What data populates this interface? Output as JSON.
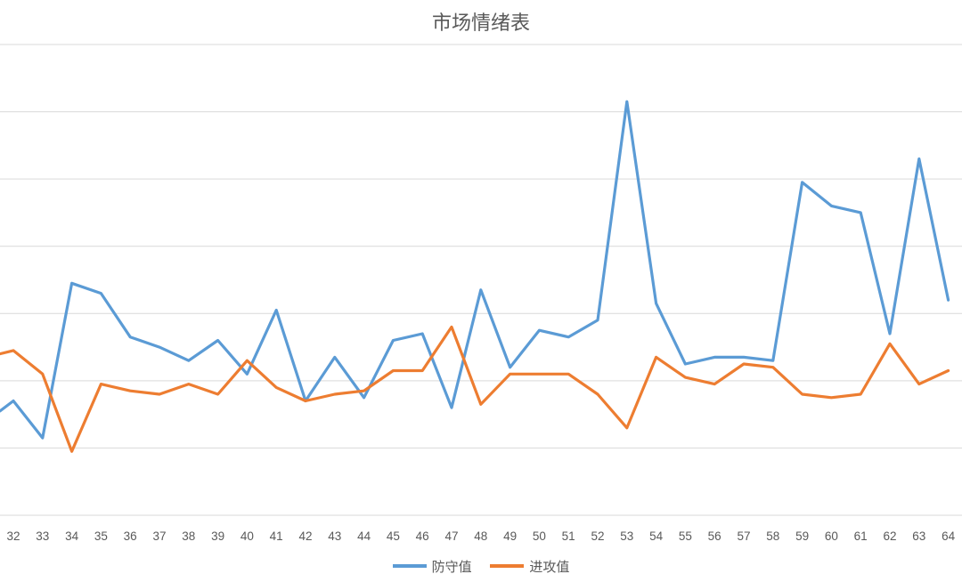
{
  "chart_data": {
    "type": "line",
    "title": "市场情绪表",
    "categories": [
      "32",
      "33",
      "34",
      "35",
      "36",
      "37",
      "38",
      "39",
      "40",
      "41",
      "42",
      "43",
      "44",
      "45",
      "46",
      "47",
      "48",
      "49",
      "50",
      "51",
      "52",
      "53",
      "54",
      "55",
      "56",
      "57",
      "58",
      "59",
      "60",
      "61",
      "62",
      "63",
      "64"
    ],
    "series": [
      {
        "name": "防守值",
        "color": "#5B9BD5",
        "values": [
          -0.3,
          -0.85,
          1.45,
          1.3,
          0.65,
          0.5,
          0.3,
          0.6,
          0.1,
          1.05,
          -0.3,
          0.35,
          -0.25,
          0.6,
          0.7,
          -0.4,
          1.35,
          0.2,
          0.75,
          0.65,
          0.9,
          4.15,
          1.15,
          0.25,
          0.35,
          0.35,
          0.3,
          2.95,
          2.6,
          2.5,
          0.7,
          3.3,
          1.2
        ],
        "start_value": -0.45
      },
      {
        "name": "进攻值",
        "color": "#ED7D31",
        "values": [
          0.45,
          0.1,
          -1.05,
          -0.05,
          -0.15,
          -0.2,
          -0.05,
          -0.2,
          0.3,
          -0.1,
          -0.3,
          -0.2,
          -0.15,
          0.15,
          0.15,
          0.8,
          -0.35,
          0.1,
          0.1,
          0.1,
          -0.2,
          -0.7,
          0.35,
          0.05,
          -0.05,
          0.25,
          0.2,
          -0.2,
          -0.25,
          -0.2,
          0.55,
          -0.05,
          0.15
        ],
        "start_value": 0.4
      }
    ],
    "ylim": [
      -2,
      5
    ],
    "y_gridlines": [
      -2,
      -1,
      0,
      1,
      2,
      3,
      4,
      5
    ],
    "grid": true,
    "legend_position": "bottom"
  }
}
